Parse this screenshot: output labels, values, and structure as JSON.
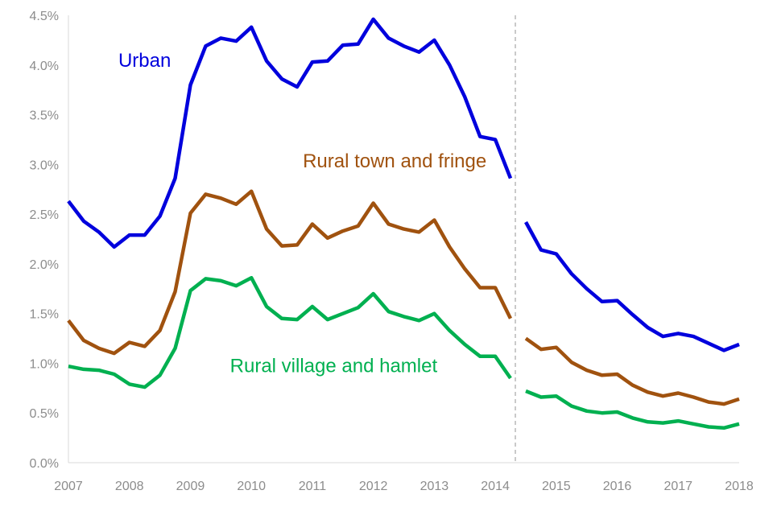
{
  "chart_data": {
    "type": "line",
    "title": "",
    "xlabel": "",
    "ylabel": "",
    "xlim": [
      2007.0,
      2018.0
    ],
    "ylim": [
      0.0,
      4.5
    ],
    "x_ticks": [
      "2007",
      "2008",
      "2009",
      "2010",
      "2011",
      "2012",
      "2013",
      "2014",
      "2015",
      "2016",
      "2017",
      "2018"
    ],
    "y_ticks": [
      "0.0%",
      "0.5%",
      "1.0%",
      "1.5%",
      "2.0%",
      "2.5%",
      "3.0%",
      "3.5%",
      "4.0%",
      "4.5%"
    ],
    "grid": false,
    "legend": "none",
    "series_break_x": 2014.25,
    "series": [
      {
        "name": "Urban",
        "color": "#0000dd",
        "segments": [
          {
            "x": [
              2007.0,
              2007.25,
              2007.5,
              2007.75,
              2008.0,
              2008.25,
              2008.5,
              2008.75,
              2009.0,
              2009.25,
              2009.5,
              2009.75,
              2010.0,
              2010.25,
              2010.5,
              2010.75,
              2011.0,
              2011.25,
              2011.5,
              2011.75,
              2012.0,
              2012.25,
              2012.5,
              2012.75,
              2013.0,
              2013.25,
              2013.5,
              2013.75,
              2014.0,
              2014.25
            ],
            "y": [
              2.63,
              2.43,
              2.32,
              2.17,
              2.29,
              2.29,
              2.48,
              2.86,
              3.8,
              4.19,
              4.27,
              4.24,
              4.38,
              4.04,
              3.86,
              3.78,
              4.03,
              4.04,
              4.2,
              4.21,
              4.46,
              4.27,
              4.19,
              4.13,
              4.25,
              4.0,
              3.68,
              3.28,
              3.25,
              2.86
            ]
          },
          {
            "x": [
              2014.5,
              2014.75,
              2015.0,
              2015.25,
              2015.5,
              2015.75,
              2016.0,
              2016.25,
              2016.5,
              2016.75,
              2017.0,
              2017.25,
              2017.5,
              2017.75,
              2018.0
            ],
            "y": [
              2.42,
              2.14,
              2.1,
              1.9,
              1.75,
              1.62,
              1.63,
              1.49,
              1.36,
              1.27,
              1.3,
              1.27,
              1.2,
              1.13,
              1.19
            ]
          }
        ]
      },
      {
        "name": "Rural town and fringe",
        "color": "#a0520f",
        "segments": [
          {
            "x": [
              2007.0,
              2007.25,
              2007.5,
              2007.75,
              2008.0,
              2008.25,
              2008.5,
              2008.75,
              2009.0,
              2009.25,
              2009.5,
              2009.75,
              2010.0,
              2010.25,
              2010.5,
              2010.75,
              2011.0,
              2011.25,
              2011.5,
              2011.75,
              2012.0,
              2012.25,
              2012.5,
              2012.75,
              2013.0,
              2013.25,
              2013.5,
              2013.75,
              2014.0,
              2014.25
            ],
            "y": [
              1.43,
              1.23,
              1.15,
              1.1,
              1.21,
              1.17,
              1.33,
              1.72,
              2.51,
              2.7,
              2.66,
              2.6,
              2.73,
              2.35,
              2.18,
              2.19,
              2.4,
              2.26,
              2.33,
              2.38,
              2.61,
              2.4,
              2.35,
              2.32,
              2.44,
              2.17,
              1.95,
              1.76,
              1.76,
              1.45
            ]
          },
          {
            "x": [
              2014.5,
              2014.75,
              2015.0,
              2015.25,
              2015.5,
              2015.75,
              2016.0,
              2016.25,
              2016.5,
              2016.75,
              2017.0,
              2017.25,
              2017.5,
              2017.75,
              2018.0
            ],
            "y": [
              1.25,
              1.14,
              1.16,
              1.01,
              0.93,
              0.88,
              0.89,
              0.78,
              0.71,
              0.67,
              0.7,
              0.66,
              0.61,
              0.59,
              0.64
            ]
          }
        ]
      },
      {
        "name": "Rural village and hamlet",
        "color": "#00b050",
        "segments": [
          {
            "x": [
              2007.0,
              2007.25,
              2007.5,
              2007.75,
              2008.0,
              2008.25,
              2008.5,
              2008.75,
              2009.0,
              2009.25,
              2009.5,
              2009.75,
              2010.0,
              2010.25,
              2010.5,
              2010.75,
              2011.0,
              2011.25,
              2011.5,
              2011.75,
              2012.0,
              2012.25,
              2012.5,
              2012.75,
              2013.0,
              2013.25,
              2013.5,
              2013.75,
              2014.0,
              2014.25
            ],
            "y": [
              0.97,
              0.94,
              0.93,
              0.89,
              0.79,
              0.76,
              0.88,
              1.15,
              1.73,
              1.85,
              1.83,
              1.78,
              1.86,
              1.57,
              1.45,
              1.44,
              1.57,
              1.44,
              1.5,
              1.56,
              1.7,
              1.52,
              1.47,
              1.43,
              1.5,
              1.33,
              1.19,
              1.07,
              1.07,
              0.85
            ]
          },
          {
            "x": [
              2014.5,
              2014.75,
              2015.0,
              2015.25,
              2015.5,
              2015.75,
              2016.0,
              2016.25,
              2016.5,
              2016.75,
              2017.0,
              2017.25,
              2017.5,
              2017.75,
              2018.0
            ],
            "y": [
              0.72,
              0.66,
              0.67,
              0.57,
              0.52,
              0.5,
              0.51,
              0.45,
              0.41,
              0.4,
              0.42,
              0.39,
              0.36,
              0.35,
              0.39
            ]
          }
        ]
      }
    ]
  }
}
